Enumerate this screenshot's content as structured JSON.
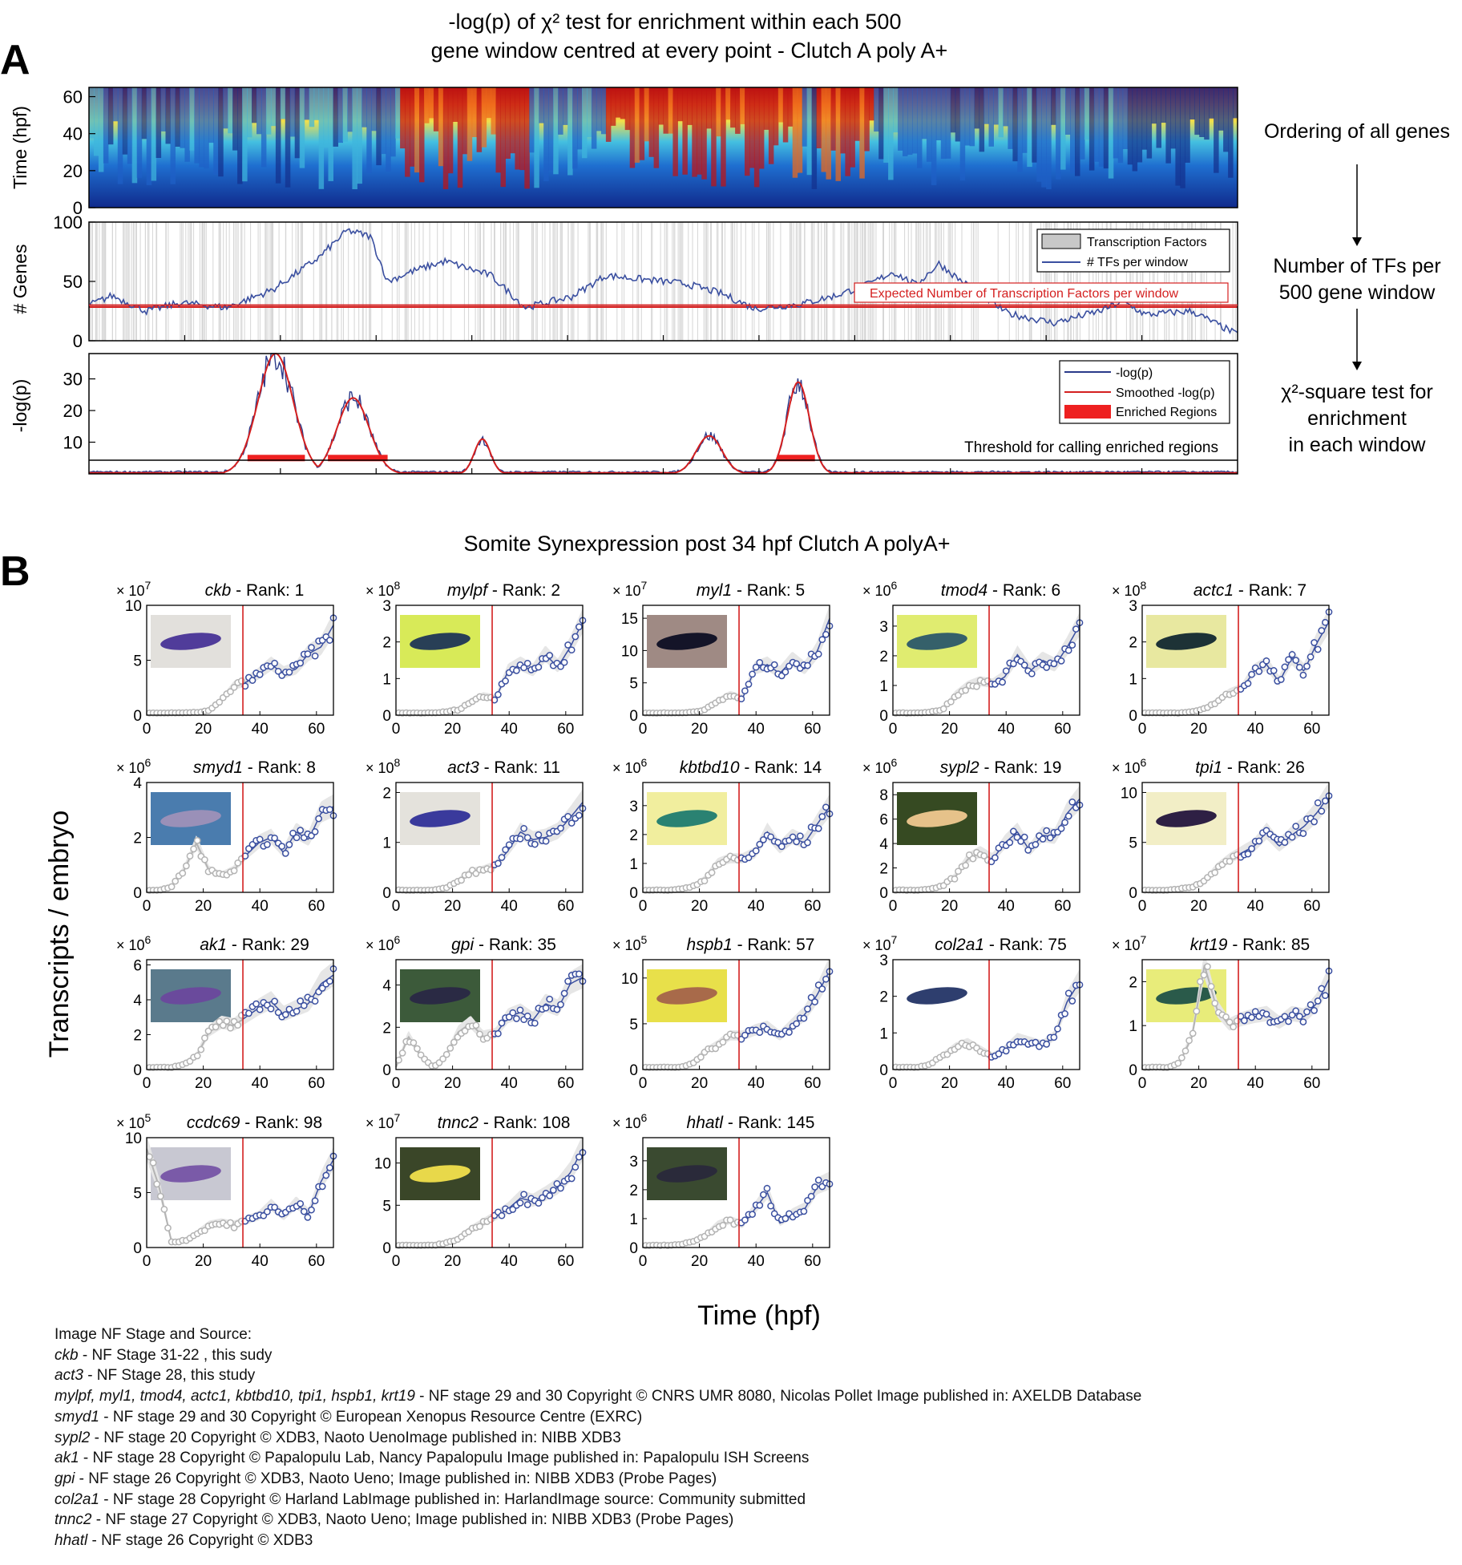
{
  "panel_a": {
    "letter": "A",
    "title_line1": "-log(p) of χ² test for enrichment within each 500",
    "title_line2": "gene window centred at every point - Clutch A poly A+",
    "flow": [
      "Ordering of all genes",
      "Number of TFs per",
      "500 gene window",
      "χ²-square test for",
      "enrichment",
      "in each window"
    ]
  },
  "panel_b": {
    "letter": "B",
    "title": "Somite Synexpression post 34 hpf Clutch A polyA+",
    "ylabel": "Transcripts / embryo",
    "xlabel": "Time (hpf)",
    "rank_prefix": " - Rank: ",
    "exp_prefix": "× 10"
  },
  "colors": {
    "axis": "#000000",
    "blue_series": "#3a4fa0",
    "grey_series": "#b3b3b3",
    "red_line": "#d42020",
    "enriched": "#ee2020",
    "tf_band": "#d6d6d6"
  },
  "chart_data": [
    {
      "id": "heatmap",
      "type": "heatmap",
      "ylabel": "Time (hpf)",
      "yticks": [
        0,
        20,
        40,
        60
      ],
      "ylim": [
        0,
        65
      ],
      "colormap": "jet",
      "x_axis": "ordering of all genes"
    },
    {
      "id": "tf_count",
      "type": "line",
      "ylabel": "# Genes",
      "yticks": [
        0,
        50,
        100
      ],
      "ylim": [
        0,
        100
      ],
      "expected": 30,
      "expected_label": "Expected Number of Transcription Factors per window",
      "legend": [
        "Transcription Factors",
        "# TFs per window"
      ],
      "legend_position": "top-right",
      "series": [
        {
          "name": "# TFs per window",
          "x": [
            0,
            0.02,
            0.05,
            0.08,
            0.12,
            0.16,
            0.2,
            0.225,
            0.245,
            0.26,
            0.28,
            0.31,
            0.35,
            0.38,
            0.42,
            0.45,
            0.48,
            0.52,
            0.55,
            0.58,
            0.62,
            0.65,
            0.68,
            0.7,
            0.72,
            0.74,
            0.76,
            0.8,
            0.84,
            0.88,
            0.9,
            0.92,
            0.96,
            1.0
          ],
          "y": [
            30,
            38,
            25,
            32,
            28,
            43,
            70,
            93,
            88,
            50,
            58,
            67,
            55,
            28,
            37,
            55,
            52,
            48,
            40,
            27,
            31,
            38,
            48,
            58,
            47,
            65,
            50,
            23,
            15,
            25,
            33,
            22,
            25,
            5
          ]
        }
      ]
    },
    {
      "id": "enrichment",
      "type": "line",
      "ylabel": "-log(p)",
      "yticks": [
        10,
        20,
        30
      ],
      "ylim": [
        0,
        38
      ],
      "threshold": 5,
      "threshold_label": "Threshold for calling enriched regions",
      "legend": [
        "-log(p)",
        "Smoothed -log(p)",
        "Enriched Regions"
      ],
      "legend_position": "top-right",
      "peaks": [
        {
          "x0": 0.135,
          "x1": 0.19,
          "y": 38
        },
        {
          "x0": 0.205,
          "x1": 0.255,
          "y": 24
        },
        {
          "x0": 0.33,
          "x1": 0.355,
          "y": 11
        },
        {
          "x0": 0.52,
          "x1": 0.56,
          "y": 12
        },
        {
          "x0": 0.6,
          "x1": 0.635,
          "y": 29
        }
      ],
      "enriched_regions": [
        [
          0.138,
          0.188
        ],
        [
          0.208,
          0.26
        ],
        [
          0.599,
          0.632
        ]
      ]
    },
    {
      "id": "synexpression",
      "type": "line",
      "xlabel": "Time (hpf)",
      "ylabel": "Transcripts / embryo",
      "xticks": [
        0,
        20,
        40,
        60
      ],
      "xlim": [
        0,
        66
      ],
      "cutoff_hpf": 34,
      "genes": [
        {
          "gene": "ckb",
          "rank": "1",
          "exp": "7",
          "yticks": [
            0,
            5,
            10
          ],
          "ymax": 10,
          "shape": [
            0.02,
            0.02,
            0.02,
            0.02,
            0.025,
            0.04,
            0.13,
            0.26,
            0.3,
            0.37,
            0.46,
            0.38,
            0.42,
            0.56,
            0.62,
            0.82
          ],
          "img": "#e2e0dc",
          "emb": "#503c9a"
        },
        {
          "gene": "mylpf",
          "rank": "2",
          "exp": "8",
          "yticks": [
            0,
            1,
            2,
            3
          ],
          "ymax": 3,
          "shape": [
            0.02,
            0.02,
            0.02,
            0.02,
            0.03,
            0.05,
            0.12,
            0.17,
            0.15,
            0.4,
            0.46,
            0.4,
            0.55,
            0.44,
            0.62,
            0.85
          ],
          "img": "#d8ea58",
          "emb": "#283f56"
        },
        {
          "gene": "myl1",
          "rank": "5",
          "exp": "7",
          "yticks": [
            0,
            5,
            10,
            15
          ],
          "ymax": 17,
          "shape": [
            0.02,
            0.02,
            0.02,
            0.02,
            0.03,
            0.05,
            0.12,
            0.18,
            0.15,
            0.42,
            0.46,
            0.38,
            0.5,
            0.42,
            0.58,
            0.88
          ],
          "img": "#9f8a84",
          "emb": "#141428"
        },
        {
          "gene": "tmod4",
          "rank": "6",
          "exp": "6",
          "yticks": [
            0,
            1,
            2,
            3
          ],
          "ymax": 3.7,
          "shape": [
            0.02,
            0.02,
            0.02,
            0.03,
            0.05,
            0.18,
            0.26,
            0.3,
            0.28,
            0.35,
            0.55,
            0.4,
            0.5,
            0.45,
            0.62,
            0.82
          ],
          "img": "#e0ec70",
          "emb": "#35606a"
        },
        {
          "gene": "actc1",
          "rank": "7",
          "exp": "8",
          "yticks": [
            0,
            1,
            2,
            3
          ],
          "ymax": 3,
          "shape": [
            0.02,
            0.02,
            0.02,
            0.02,
            0.03,
            0.06,
            0.12,
            0.2,
            0.24,
            0.4,
            0.46,
            0.3,
            0.52,
            0.4,
            0.65,
            0.85
          ],
          "img": "#e8e8a0",
          "emb": "#1d3236"
        },
        {
          "gene": "smyd1",
          "rank": "8",
          "exp": "6",
          "yticks": [
            0,
            2,
            4
          ],
          "ymax": 4,
          "shape": [
            0.02,
            0.02,
            0.05,
            0.2,
            0.45,
            0.2,
            0.15,
            0.2,
            0.34,
            0.45,
            0.5,
            0.36,
            0.55,
            0.48,
            0.72,
            0.78
          ],
          "img": "#4a7cae",
          "emb": "#9a90b8"
        },
        {
          "gene": "act3",
          "rank": "11",
          "exp": "8",
          "yticks": [
            0,
            1,
            2
          ],
          "ymax": 2.2,
          "shape": [
            0.02,
            0.02,
            0.02,
            0.02,
            0.04,
            0.1,
            0.18,
            0.2,
            0.24,
            0.38,
            0.55,
            0.48,
            0.5,
            0.55,
            0.68,
            0.82
          ],
          "img": "#e4e2dc",
          "emb": "#3a3a9c"
        },
        {
          "gene": "kbtbd10",
          "rank": "14",
          "exp": "6",
          "yticks": [
            0,
            1,
            2,
            3
          ],
          "ymax": 3.8,
          "shape": [
            0.02,
            0.02,
            0.02,
            0.03,
            0.05,
            0.12,
            0.26,
            0.3,
            0.3,
            0.35,
            0.55,
            0.4,
            0.5,
            0.45,
            0.62,
            0.78
          ],
          "img": "#f1ee9e",
          "emb": "#2a8272"
        },
        {
          "gene": "sypl2",
          "rank": "19",
          "exp": "6",
          "yticks": [
            0,
            2,
            4,
            6,
            8
          ],
          "ymax": 9,
          "shape": [
            0.02,
            0.02,
            0.02,
            0.03,
            0.06,
            0.14,
            0.3,
            0.36,
            0.3,
            0.45,
            0.55,
            0.38,
            0.52,
            0.5,
            0.72,
            0.85
          ],
          "img": "#364a22",
          "emb": "#e6c28a"
        },
        {
          "gene": "tpi1",
          "rank": "26",
          "exp": "6",
          "yticks": [
            0,
            5,
            10
          ],
          "ymax": 11,
          "shape": [
            0.02,
            0.02,
            0.02,
            0.03,
            0.05,
            0.1,
            0.22,
            0.3,
            0.36,
            0.42,
            0.55,
            0.42,
            0.52,
            0.6,
            0.72,
            0.88
          ],
          "img": "#f2eec6",
          "emb": "#2e2044"
        },
        {
          "gene": "ak1",
          "rank": "29",
          "exp": "6",
          "yticks": [
            0,
            2,
            4,
            6
          ],
          "ymax": 6.3,
          "shape": [
            0.02,
            0.02,
            0.02,
            0.05,
            0.12,
            0.34,
            0.42,
            0.4,
            0.48,
            0.56,
            0.62,
            0.5,
            0.55,
            0.6,
            0.78,
            0.86
          ],
          "img": "#5a7a8c",
          "emb": "#6a4a9c"
        },
        {
          "gene": "gpi",
          "rank": "35",
          "exp": "6",
          "yticks": [
            0,
            2,
            4
          ],
          "ymax": 5.2,
          "shape": [
            0.02,
            0.3,
            0.12,
            0.02,
            0.12,
            0.34,
            0.42,
            0.3,
            0.32,
            0.48,
            0.52,
            0.45,
            0.6,
            0.55,
            0.78,
            0.84
          ],
          "img": "#3c5a3a",
          "emb": "#2a2a44"
        },
        {
          "gene": "hspb1",
          "rank": "57",
          "exp": "5",
          "yticks": [
            0,
            5,
            10
          ],
          "ymax": 12,
          "shape": [
            0.02,
            0.02,
            0.02,
            0.02,
            0.06,
            0.16,
            0.22,
            0.3,
            0.3,
            0.35,
            0.38,
            0.3,
            0.4,
            0.5,
            0.68,
            0.9
          ],
          "img": "#e8e04a",
          "emb": "#a86a4a"
        },
        {
          "gene": "col2a1",
          "rank": "75",
          "exp": "7",
          "yticks": [
            0,
            1,
            2,
            3
          ],
          "ymax": 3,
          "shape": [
            0.02,
            0.02,
            0.02,
            0.05,
            0.12,
            0.2,
            0.24,
            0.18,
            0.12,
            0.18,
            0.28,
            0.25,
            0.22,
            0.3,
            0.62,
            0.8
          ],
          "img": "#ffffff",
          "emb": "#2e3e6e"
        },
        {
          "gene": "krt19",
          "rank": "85",
          "exp": "7",
          "yticks": [
            0,
            1,
            2
          ],
          "ymax": 2.5,
          "shape": [
            0.02,
            0.02,
            0.02,
            0.06,
            0.3,
            0.95,
            0.55,
            0.4,
            0.45,
            0.48,
            0.5,
            0.42,
            0.5,
            0.48,
            0.6,
            0.82
          ],
          "img": "#e8ec7a",
          "emb": "#2a5a4a"
        },
        {
          "gene": "ccdc69",
          "rank": "98",
          "exp": "5",
          "yticks": [
            0,
            5,
            10
          ],
          "ymax": 10,
          "shape": [
            0.9,
            0.55,
            0.05,
            0.06,
            0.12,
            0.2,
            0.22,
            0.2,
            0.24,
            0.28,
            0.38,
            0.28,
            0.4,
            0.3,
            0.6,
            0.8
          ],
          "img": "#c8c8d2",
          "emb": "#7a5aa8"
        },
        {
          "gene": "tnnc2",
          "rank": "108",
          "exp": "7",
          "yticks": [
            0,
            5,
            10
          ],
          "ymax": 13,
          "shape": [
            0.02,
            0.02,
            0.02,
            0.02,
            0.04,
            0.08,
            0.16,
            0.22,
            0.28,
            0.35,
            0.45,
            0.42,
            0.48,
            0.55,
            0.68,
            0.9
          ],
          "img": "#3a4628",
          "emb": "#e8d84a"
        },
        {
          "gene": "hhatl",
          "rank": "145",
          "exp": "6",
          "yticks": [
            0,
            1,
            2,
            3
          ],
          "ymax": 3.8,
          "shape": [
            0.02,
            0.02,
            0.02,
            0.03,
            0.05,
            0.1,
            0.2,
            0.24,
            0.2,
            0.35,
            0.5,
            0.22,
            0.3,
            0.35,
            0.55,
            0.6
          ],
          "img": "#3a4a30",
          "emb": "#2a2a3a"
        }
      ]
    }
  ],
  "credits": {
    "heading": "Image NF Stage and Source:",
    "lines": [
      {
        "genes": "ckb",
        "text": " - NF Stage 31-22 , this sudy"
      },
      {
        "genes": "act3",
        "text": " - NF Stage 28, this study"
      },
      {
        "genes": "mylpf,  myl1, tmod4, actc1,  kbtbd10,  tpi1, hspb1, krt19",
        "text": " - NF stage 29 and 30 Copyright © CNRS UMR 8080, Nicolas Pollet Image published in: AXELDB Database"
      },
      {
        "genes": "smyd1",
        "text": " - NF stage 29 and 30 Copyright © European Xenopus Resource Centre (EXRC)"
      },
      {
        "genes": "sypl2",
        "text": " - NF stage 20 Copyright © XDB3, Naoto UenoImage published in: NIBB XDB3"
      },
      {
        "genes": "ak1",
        "text": " - NF stage 28 Copyright © Papalopulu Lab, Nancy Papalopulu Image published in: Papalopulu ISH Screens"
      },
      {
        "genes": "gpi",
        "text": " - NF stage 26 Copyright © XDB3, Naoto Ueno; Image published in: NIBB XDB3 (Probe Pages)"
      },
      {
        "genes": "col2a1",
        "text": " - NF stage 28 Copyright © Harland LabImage published in: HarlandImage source: Community submitted"
      },
      {
        "genes": "tnnc2",
        "text": " - NF stage 27 Copyright © XDB3, Naoto Ueno; Image published in: NIBB XDB3 (Probe Pages)"
      },
      {
        "genes": "hhatl",
        "text": " - NF stage 26 Copyright © XDB3"
      }
    ]
  }
}
